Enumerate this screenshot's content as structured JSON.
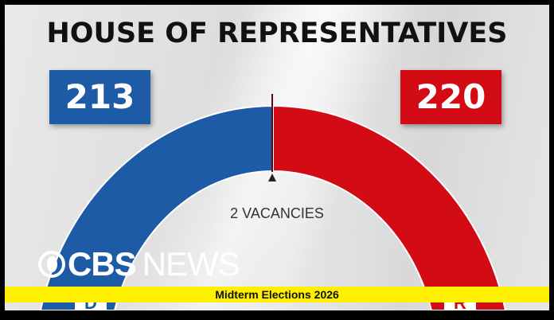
{
  "title": "HOUSE OF REPRESENTATIVES",
  "democrats": {
    "seats": "213",
    "badge": "D",
    "color": "#1d5ba6"
  },
  "republicans": {
    "seats": "220",
    "badge": "R",
    "color": "#d30b14"
  },
  "vacancies": "2 VACANCIES",
  "logo": {
    "brand": "CBS",
    "suffix": "NEWS"
  },
  "ticker": "Midterm Elections 2026"
}
